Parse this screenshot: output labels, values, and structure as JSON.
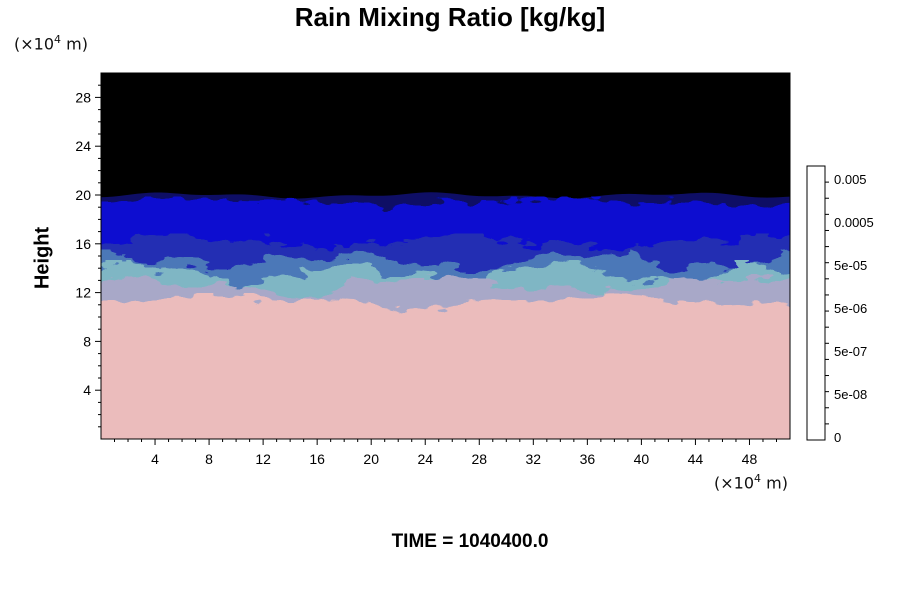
{
  "chart_data": {
    "type": "heatmap",
    "title": "Rain Mixing Ratio [kg/kg]",
    "ylabel": "Height",
    "xlabel": "",
    "x_unit_label": "×10",
    "x_unit_exp": "4",
    "x_unit_suffix": " m",
    "y_unit_label": "×10",
    "y_unit_exp": "4",
    "y_unit_suffix": " m",
    "xlim": [
      0,
      51
    ],
    "ylim": [
      0,
      30
    ],
    "x_ticks": [
      4,
      8,
      12,
      16,
      20,
      24,
      28,
      32,
      36,
      40,
      44,
      48
    ],
    "y_ticks": [
      4,
      8,
      12,
      16,
      20,
      24,
      28
    ],
    "colorbar": {
      "labels": [
        "0.005",
        "0.0005",
        "5e-05",
        "5e-06",
        "5e-07",
        "5e-08",
        "0"
      ],
      "levels": 17,
      "colors": [
        "#000000",
        "#080808",
        "#141414",
        "#202020",
        "#2e2e2e",
        "#3c3c3c",
        "#4a4a4a",
        "#585858",
        "#666666",
        "#747474",
        "#828282",
        "#909090",
        "#9e9e9e",
        "#acacac",
        "#bababa",
        "#c8c8c8",
        "#e2e2e2"
      ]
    },
    "layers": [
      {
        "name": "upper",
        "color": "#000000",
        "bottom_km": 19.8,
        "top_km": 30
      },
      {
        "name": "blue",
        "color": "#0a0fd0"
      },
      {
        "name": "teal",
        "color": "#7fb6c4"
      },
      {
        "name": "lower",
        "color": "#ebbcbc",
        "bottom_km": 0,
        "top_km": 11.3
      }
    ],
    "time_label": "TIME = 1040400.0"
  }
}
